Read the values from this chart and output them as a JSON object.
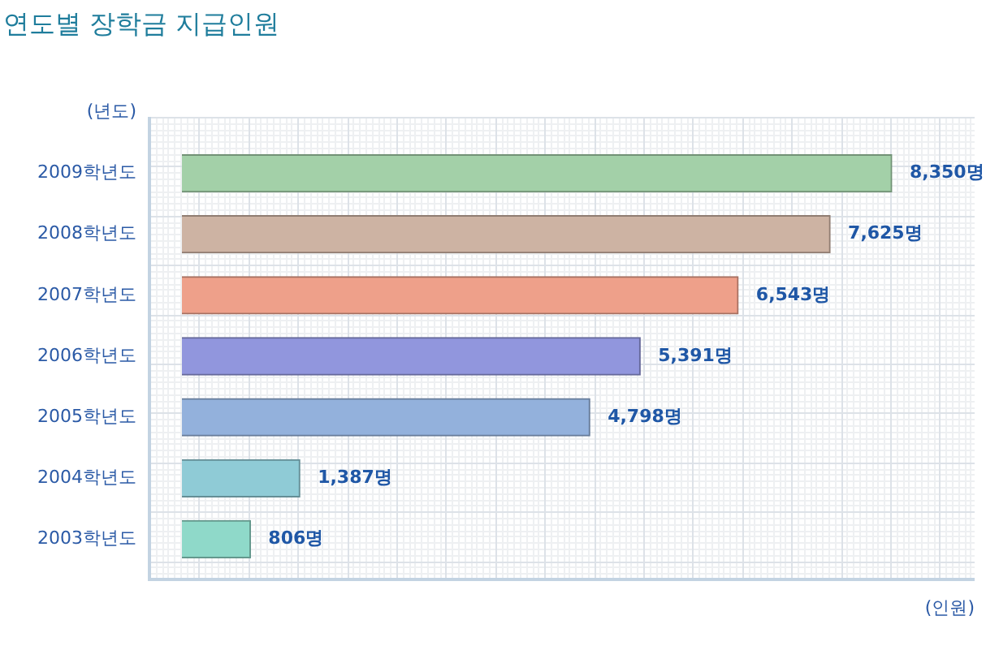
{
  "chart_data": {
    "type": "bar",
    "orientation": "horizontal",
    "title": "연도별 장학금 지급인원",
    "ylabel": "(년도)",
    "xlabel": "(인원)",
    "categories": [
      "2009학년도",
      "2008학년도",
      "2007학년도",
      "2006학년도",
      "2005학년도",
      "2004학년도",
      "2003학년도"
    ],
    "values": [
      8350,
      7625,
      6543,
      5391,
      4798,
      1387,
      806
    ],
    "colors": [
      "#a3d0a8",
      "#cdb3a3",
      "#eea08a",
      "#9196dd",
      "#93b1dc",
      "#8fcbd6",
      "#8fd9c9"
    ],
    "value_labels": [
      "8,350명",
      "7,625명",
      "6,543명",
      "5,391명",
      "4,798명",
      "1,387명",
      "806명"
    ],
    "grid": true
  }
}
